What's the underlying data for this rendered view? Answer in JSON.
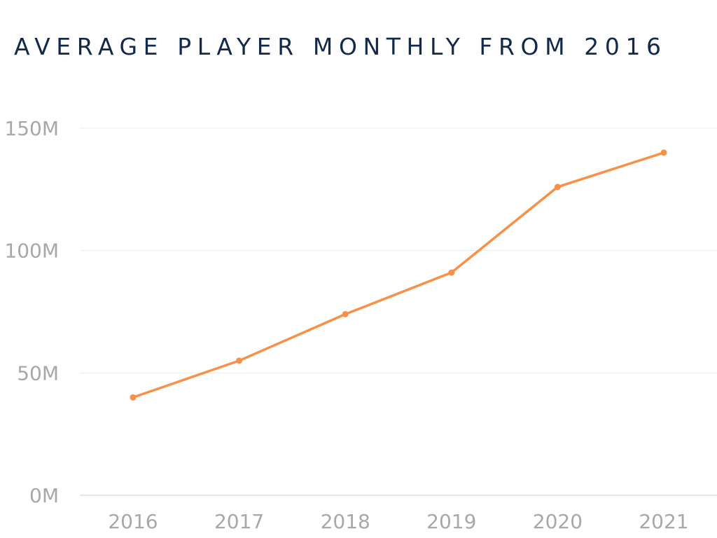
{
  "chart_data": {
    "type": "line",
    "title": "AVERAGE PLAYER MONTHLY FROM 2016",
    "xlabel": "",
    "ylabel": "",
    "categories": [
      "2016",
      "2017",
      "2018",
      "2019",
      "2020",
      "2021"
    ],
    "series": [
      {
        "values": [
          40,
          55,
          74,
          91,
          126,
          140
        ]
      }
    ],
    "ylim": [
      0,
      150
    ],
    "yticks": [
      0,
      50,
      100,
      150
    ],
    "ytick_labels": [
      "0M",
      "50M",
      "100M",
      "150M"
    ],
    "grid": true,
    "legend": "none",
    "colors": {
      "line": "#f79147",
      "title": "#13294b",
      "tick_label": "#a8a8a8",
      "grid": "#ececec",
      "axis": "#cfcfcf"
    }
  }
}
